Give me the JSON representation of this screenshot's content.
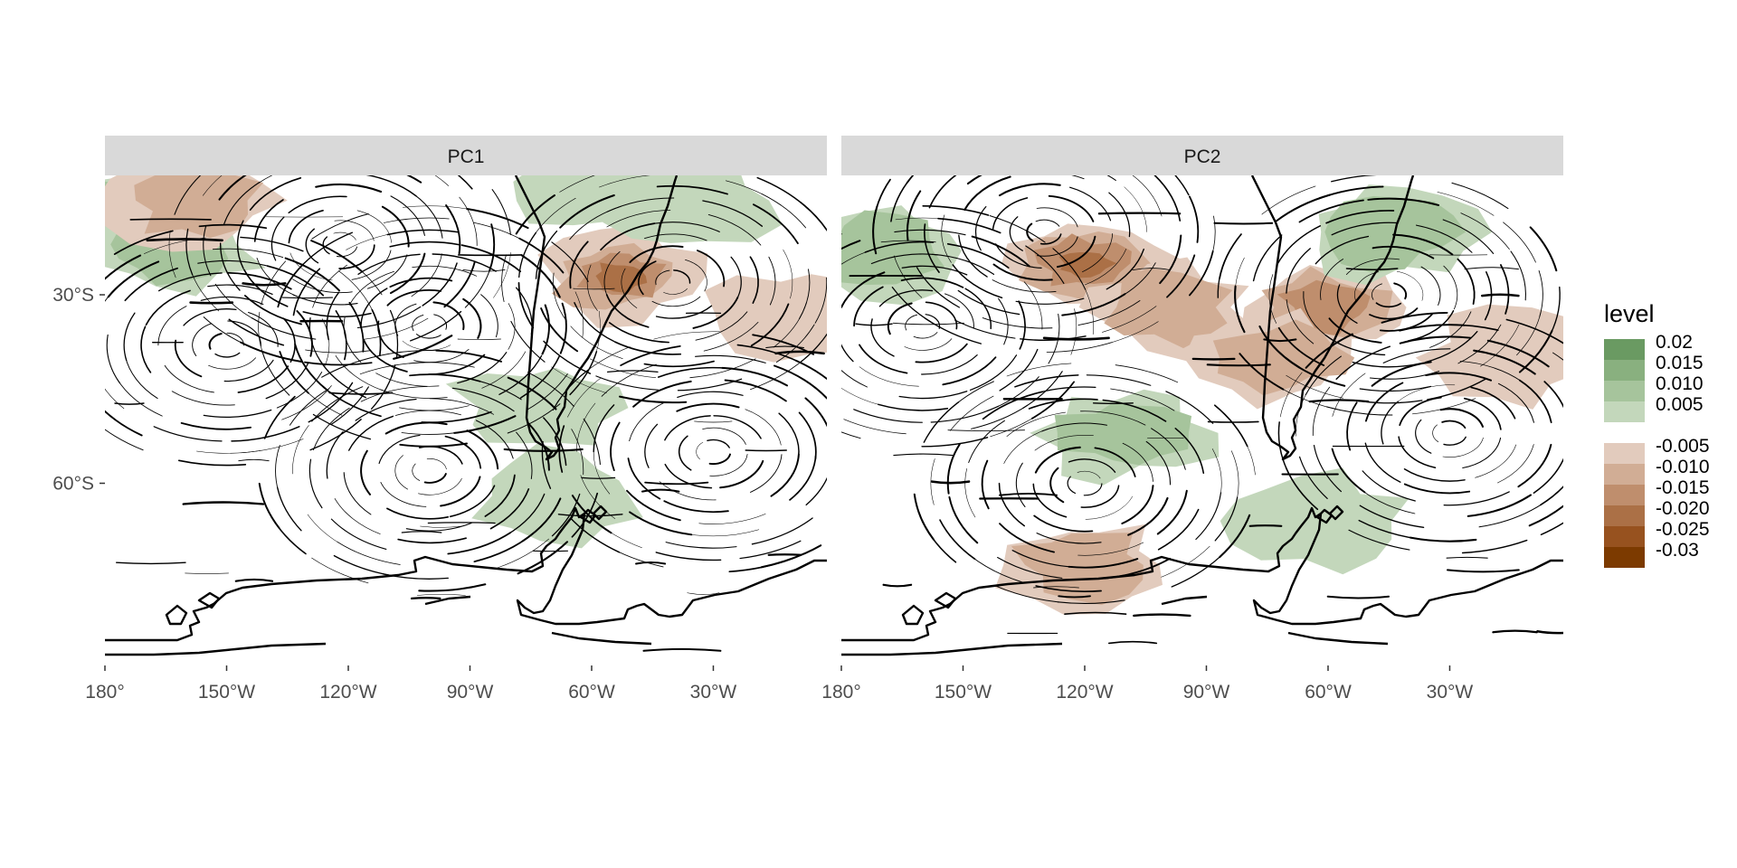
{
  "map": {
    "panels": [
      {
        "id": "pc1",
        "label": "PC1",
        "anomalies": [
          {
            "lon": -170,
            "lat": -17,
            "level": 0.015
          },
          {
            "lon": -163,
            "lat": -22,
            "level": 0.01
          },
          {
            "lon": -158,
            "lat": -15,
            "level": -0.01
          },
          {
            "lon": -53,
            "lat": -27,
            "level": -0.02
          },
          {
            "lon": -60,
            "lat": -12,
            "level": 0.005
          },
          {
            "lon": -36,
            "lat": -15,
            "level": 0.005
          },
          {
            "lon": -10,
            "lat": -33,
            "level": -0.005
          },
          {
            "lon": -73,
            "lat": -48,
            "level": 0.005
          },
          {
            "lon": -68,
            "lat": -62,
            "level": 0.005
          }
        ],
        "vortices": [
          {
            "lon": -122,
            "lat": -22,
            "dir": 1
          },
          {
            "lon": -150,
            "lat": -38,
            "dir": -1
          },
          {
            "lon": -100,
            "lat": -35,
            "dir": -1
          },
          {
            "lon": -100,
            "lat": -58,
            "dir": 1
          },
          {
            "lon": -30,
            "lat": -55,
            "dir": 1
          },
          {
            "lon": -40,
            "lat": -28,
            "dir": -1
          }
        ]
      },
      {
        "id": "pc2",
        "label": "PC2",
        "anomalies": [
          {
            "lon": -170,
            "lat": -23,
            "level": 0.01
          },
          {
            "lon": -120,
            "lat": -25,
            "level": -0.02
          },
          {
            "lon": -100,
            "lat": -32,
            "level": -0.01
          },
          {
            "lon": -60,
            "lat": -32,
            "level": -0.015
          },
          {
            "lon": -45,
            "lat": -20,
            "level": 0.01
          },
          {
            "lon": -72,
            "lat": -40,
            "level": -0.01
          },
          {
            "lon": -110,
            "lat": -52,
            "level": 0.01
          },
          {
            "lon": -120,
            "lat": -73,
            "level": -0.01
          },
          {
            "lon": -62,
            "lat": -66,
            "level": 0.005
          },
          {
            "lon": -15,
            "lat": -40,
            "level": -0.005
          }
        ],
        "vortices": [
          {
            "lon": -120,
            "lat": -60,
            "dir": 1
          },
          {
            "lon": -160,
            "lat": -35,
            "dir": -1
          },
          {
            "lon": -45,
            "lat": -30,
            "dir": -1
          },
          {
            "lon": -30,
            "lat": -52,
            "dir": 1
          },
          {
            "lon": -130,
            "lat": -20,
            "dir": 1
          }
        ]
      }
    ],
    "x_axis": {
      "ticks": [
        {
          "lon": -180,
          "label": "180°"
        },
        {
          "lon": -150,
          "label": "150°W"
        },
        {
          "lon": -120,
          "label": "120°W"
        },
        {
          "lon": -90,
          "label": "90°W"
        },
        {
          "lon": -60,
          "label": "60°W"
        },
        {
          "lon": -30,
          "label": "30°W"
        }
      ]
    },
    "y_axis": {
      "ticks": [
        {
          "lat": -30,
          "label": "30°S"
        },
        {
          "lat": -60,
          "label": "60°S"
        }
      ]
    },
    "extent": {
      "lon": [
        -180,
        -2
      ],
      "lat": [
        -11,
        -89
      ]
    },
    "legend": {
      "title": "level",
      "positive": [
        {
          "label": "0.02",
          "color": "#6a9a62"
        },
        {
          "label": "0.015",
          "color": "#89b07f"
        },
        {
          "label": "0.010",
          "color": "#a6c49c"
        },
        {
          "label": "0.005",
          "color": "#c3d7bb"
        }
      ],
      "negative": [
        {
          "label": "-0.005",
          "color": "#e2cbbd"
        },
        {
          "label": "-0.010",
          "color": "#d1ad95"
        },
        {
          "label": "-0.015",
          "color": "#bf8e6d"
        },
        {
          "label": "-0.020",
          "color": "#ab7046"
        },
        {
          "label": "-0.025",
          "color": "#97521f"
        },
        {
          "label": "-0.03",
          "color": "#7c3a00"
        }
      ]
    }
  }
}
